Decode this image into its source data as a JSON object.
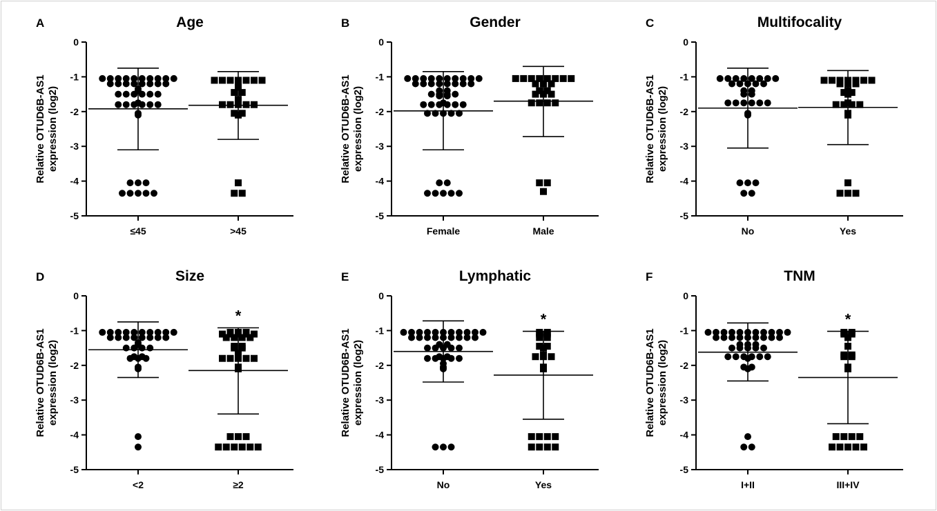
{
  "chart_data": [
    {
      "panel": "A",
      "type": "scatter",
      "title": "Age",
      "ylabel": "Relative OTUD6B-AS1 expression (log2)",
      "ylim": [
        -5,
        0
      ],
      "yticks": [
        0,
        -1,
        -2,
        -3,
        -4,
        -5
      ],
      "categories": [
        "≤45",
        ">45"
      ],
      "significance": [
        "",
        ""
      ],
      "groups": [
        {
          "category": "≤45",
          "marker": "circle",
          "values": [
            -1.05,
            -1.05,
            -1.05,
            -1.05,
            -1.05,
            -1.05,
            -1.05,
            -1.05,
            -1.05,
            -1.05,
            -1.2,
            -1.2,
            -1.2,
            -1.2,
            -1.2,
            -1.2,
            -1.2,
            -1.2,
            -1.35,
            -1.4,
            -1.5,
            -1.5,
            -1.5,
            -1.5,
            -1.5,
            -1.5,
            -1.75,
            -1.8,
            -1.8,
            -1.8,
            -1.8,
            -1.8,
            -1.8,
            -2.05,
            -2.1,
            -4.05,
            -4.05,
            -4.05,
            -4.35,
            -4.35,
            -4.35,
            -4.35,
            -4.35
          ],
          "mean": -1.92,
          "sd_upper": -0.75,
          "sd_lower": -3.1
        },
        {
          "category": ">45",
          "marker": "square",
          "values": [
            -1.1,
            -1.1,
            -1.1,
            -1.1,
            -1.1,
            -1.1,
            -1.1,
            -1.2,
            -1.3,
            -1.45,
            -1.45,
            -1.65,
            -1.7,
            -1.75,
            -1.8,
            -1.8,
            -1.8,
            -1.8,
            -1.8,
            -2.05,
            -2.05,
            -2.1,
            -4.05,
            -4.35,
            -4.35
          ],
          "mean": -1.82,
          "sd_upper": -0.85,
          "sd_lower": -2.8
        }
      ]
    },
    {
      "panel": "B",
      "type": "scatter",
      "title": "Gender",
      "ylabel": "Relative OTUD6B-AS1 expression (log2)",
      "ylim": [
        -5,
        0
      ],
      "yticks": [
        0,
        -1,
        -2,
        -3,
        -4,
        -5
      ],
      "categories": [
        "Female",
        "Male"
      ],
      "significance": [
        "",
        ""
      ],
      "groups": [
        {
          "category": "Female",
          "marker": "circle",
          "values": [
            -1.05,
            -1.05,
            -1.05,
            -1.05,
            -1.05,
            -1.05,
            -1.05,
            -1.05,
            -1.05,
            -1.05,
            -1.2,
            -1.2,
            -1.2,
            -1.2,
            -1.2,
            -1.2,
            -1.2,
            -1.2,
            -1.4,
            -1.4,
            -1.5,
            -1.5,
            -1.5,
            -1.5,
            -1.55,
            -1.55,
            -1.75,
            -1.8,
            -1.8,
            -1.8,
            -1.8,
            -1.8,
            -1.8,
            -2.05,
            -2.05,
            -2.05,
            -2.05,
            -2.05,
            -4.05,
            -4.05,
            -4.35,
            -4.35,
            -4.35,
            -4.35,
            -4.35
          ],
          "mean": -1.98,
          "sd_upper": -0.85,
          "sd_lower": -3.1
        },
        {
          "category": "Male",
          "marker": "square",
          "values": [
            -1.05,
            -1.05,
            -1.05,
            -1.05,
            -1.05,
            -1.05,
            -1.05,
            -1.05,
            -1.2,
            -1.2,
            -1.2,
            -1.4,
            -1.4,
            -1.5,
            -1.5,
            -1.5,
            -1.75,
            -1.75,
            -1.75,
            -1.75,
            -4.05,
            -4.05,
            -4.3
          ],
          "mean": -1.7,
          "sd_upper": -0.7,
          "sd_lower": -2.72
        }
      ]
    },
    {
      "panel": "C",
      "type": "scatter",
      "title": "Multifocality",
      "ylabel": "Relative OTUD6B-AS1 expression (log2)",
      "ylim": [
        -5,
        0
      ],
      "yticks": [
        0,
        -1,
        -2,
        -3,
        -4,
        -5
      ],
      "categories": [
        "No",
        "Yes"
      ],
      "significance": [
        "",
        ""
      ],
      "groups": [
        {
          "category": "No",
          "marker": "circle",
          "values": [
            -1.05,
            -1.05,
            -1.05,
            -1.05,
            -1.05,
            -1.05,
            -1.05,
            -1.05,
            -1.2,
            -1.2,
            -1.2,
            -1.2,
            -1.2,
            -1.4,
            -1.4,
            -1.5,
            -1.5,
            -1.75,
            -1.75,
            -1.75,
            -1.75,
            -1.75,
            -1.75,
            -2.05,
            -2.1,
            -4.05,
            -4.05,
            -4.05,
            -4.35,
            -4.35
          ],
          "mean": -1.9,
          "sd_upper": -0.75,
          "sd_lower": -3.05
        },
        {
          "category": "Yes",
          "marker": "square",
          "values": [
            -1.1,
            -1.1,
            -1.1,
            -1.1,
            -1.1,
            -1.1,
            -1.1,
            -1.2,
            -1.2,
            -1.2,
            -1.4,
            -1.45,
            -1.45,
            -1.5,
            -1.75,
            -1.8,
            -1.8,
            -1.8,
            -1.8,
            -2.05,
            -2.1,
            -4.05,
            -4.35,
            -4.35,
            -4.35
          ],
          "mean": -1.88,
          "sd_upper": -0.82,
          "sd_lower": -2.95
        }
      ]
    },
    {
      "panel": "D",
      "type": "scatter",
      "title": "Size",
      "ylabel": "Relative OTUD6B-AS1 expression (log2)",
      "ylim": [
        -5,
        0
      ],
      "yticks": [
        0,
        -1,
        -2,
        -3,
        -4,
        -5
      ],
      "categories": [
        "<2",
        "≥2"
      ],
      "significance": [
        "",
        "*"
      ],
      "groups": [
        {
          "category": "<2",
          "marker": "circle",
          "values": [
            -1.05,
            -1.05,
            -1.05,
            -1.05,
            -1.05,
            -1.05,
            -1.05,
            -1.05,
            -1.05,
            -1.05,
            -1.2,
            -1.2,
            -1.2,
            -1.2,
            -1.2,
            -1.2,
            -1.2,
            -1.2,
            -1.35,
            -1.4,
            -1.5,
            -1.5,
            -1.5,
            -1.5,
            -1.75,
            -1.75,
            -1.8,
            -1.8,
            -1.8,
            -2.05,
            -2.1,
            -4.05,
            -4.35
          ],
          "mean": -1.55,
          "sd_upper": -0.75,
          "sd_lower": -2.35
        },
        {
          "category": "≥2",
          "marker": "square",
          "values": [
            -1.05,
            -1.05,
            -1.05,
            -1.1,
            -1.1,
            -1.1,
            -1.1,
            -1.1,
            -1.2,
            -1.2,
            -1.2,
            -1.2,
            -1.45,
            -1.45,
            -1.5,
            -1.5,
            -1.65,
            -1.7,
            -1.75,
            -1.8,
            -1.8,
            -1.8,
            -1.8,
            -1.8,
            -2.05,
            -2.1,
            -4.05,
            -4.05,
            -4.05,
            -4.35,
            -4.35,
            -4.35,
            -4.35,
            -4.35,
            -4.35
          ],
          "mean": -2.15,
          "sd_upper": -0.92,
          "sd_lower": -3.4
        }
      ]
    },
    {
      "panel": "E",
      "type": "scatter",
      "title": "Lymphatic",
      "ylabel": "Relative OTUD6B-AS1 expression (log2)",
      "ylim": [
        -5,
        0
      ],
      "yticks": [
        0,
        -1,
        -2,
        -3,
        -4,
        -5
      ],
      "categories": [
        "No",
        "Yes"
      ],
      "significance": [
        "",
        "*"
      ],
      "groups": [
        {
          "category": "No",
          "marker": "circle",
          "values": [
            -1.05,
            -1.05,
            -1.05,
            -1.05,
            -1.05,
            -1.05,
            -1.05,
            -1.05,
            -1.05,
            -1.05,
            -1.05,
            -1.2,
            -1.2,
            -1.2,
            -1.2,
            -1.2,
            -1.2,
            -1.2,
            -1.2,
            -1.2,
            -1.4,
            -1.4,
            -1.5,
            -1.5,
            -1.5,
            -1.5,
            -1.5,
            -1.75,
            -1.75,
            -1.8,
            -1.8,
            -1.8,
            -1.8,
            -1.8,
            -1.95,
            -2.05,
            -2.1,
            -4.35,
            -4.35,
            -4.35
          ],
          "mean": -1.6,
          "sd_upper": -0.72,
          "sd_lower": -2.48
        },
        {
          "category": "Yes",
          "marker": "square",
          "values": [
            -1.05,
            -1.05,
            -1.1,
            -1.1,
            -1.2,
            -1.2,
            -1.45,
            -1.45,
            -1.5,
            -1.7,
            -1.75,
            -1.75,
            -1.75,
            -2.05,
            -2.1,
            -4.05,
            -4.05,
            -4.05,
            -4.05,
            -4.35,
            -4.35,
            -4.35,
            -4.35
          ],
          "mean": -2.28,
          "sd_upper": -1.02,
          "sd_lower": -3.55
        }
      ]
    },
    {
      "panel": "F",
      "type": "scatter",
      "title": "TNM",
      "ylabel": "Relative OTUD6B-AS1 expression (log2)",
      "ylim": [
        -5,
        0
      ],
      "yticks": [
        0,
        -1,
        -2,
        -3,
        -4,
        -5
      ],
      "categories": [
        "I+II",
        "III+IV"
      ],
      "significance": [
        "",
        "*"
      ],
      "groups": [
        {
          "category": "I+II",
          "marker": "circle",
          "values": [
            -1.05,
            -1.05,
            -1.05,
            -1.05,
            -1.05,
            -1.05,
            -1.05,
            -1.05,
            -1.05,
            -1.05,
            -1.05,
            -1.2,
            -1.2,
            -1.2,
            -1.2,
            -1.2,
            -1.2,
            -1.2,
            -1.2,
            -1.2,
            -1.4,
            -1.4,
            -1.4,
            -1.5,
            -1.5,
            -1.5,
            -1.5,
            -1.5,
            -1.75,
            -1.75,
            -1.75,
            -1.75,
            -1.75,
            -1.75,
            -1.8,
            -2.05,
            -2.05,
            -2.1,
            -4.05,
            -4.35,
            -4.35
          ],
          "mean": -1.62,
          "sd_upper": -0.78,
          "sd_lower": -2.45
        },
        {
          "category": "III+IV",
          "marker": "square",
          "values": [
            -1.05,
            -1.05,
            -1.1,
            -1.1,
            -1.2,
            -1.45,
            -1.7,
            -1.7,
            -1.75,
            -1.75,
            -2.05,
            -2.1,
            -4.05,
            -4.05,
            -4.05,
            -4.05,
            -4.35,
            -4.35,
            -4.35,
            -4.35,
            -4.35
          ],
          "mean": -2.35,
          "sd_upper": -1.02,
          "sd_lower": -3.68
        }
      ]
    }
  ]
}
